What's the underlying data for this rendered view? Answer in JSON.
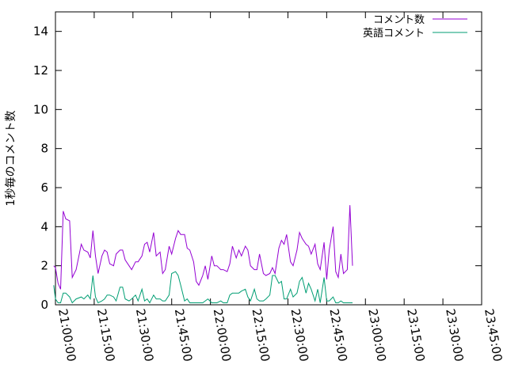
{
  "chart_data": {
    "type": "line",
    "ylabel": "1秒毎のコメント数",
    "ylim": [
      0,
      15
    ],
    "yticks": [
      0,
      2,
      4,
      6,
      8,
      10,
      12,
      14
    ],
    "xlim": [
      "21:00:00",
      "23:45:00"
    ],
    "xticks": [
      "21:00:00",
      "21:15:00",
      "21:30:00",
      "21:45:00",
      "22:00:00",
      "22:15:00",
      "22:30:00",
      "22:45:00",
      "23:00:00",
      "23:15:00",
      "23:30:00",
      "23:45:00"
    ],
    "grid": false,
    "legend_position": "top-right",
    "series": [
      {
        "name": "コメント数",
        "color": "#9400d3",
        "points": [
          [
            "20:59:20",
            2.0
          ],
          [
            "21:00:00",
            1.9
          ],
          [
            "21:01:00",
            1.1
          ],
          [
            "21:02:00",
            0.8
          ],
          [
            "21:03:00",
            4.8
          ],
          [
            "21:04:00",
            4.4
          ],
          [
            "21:05:30",
            4.3
          ],
          [
            "21:06:30",
            1.4
          ],
          [
            "21:08:00",
            1.8
          ],
          [
            "21:10:00",
            3.1
          ],
          [
            "21:11:00",
            2.8
          ],
          [
            "21:12:30",
            2.7
          ],
          [
            "21:13:30",
            2.4
          ],
          [
            "21:14:30",
            3.8
          ],
          [
            "21:15:30",
            2.5
          ],
          [
            "21:16:30",
            1.6
          ],
          [
            "21:18:00",
            2.5
          ],
          [
            "21:19:00",
            2.8
          ],
          [
            "21:20:00",
            2.7
          ],
          [
            "21:21:00",
            2.1
          ],
          [
            "21:22:30",
            2.0
          ],
          [
            "21:23:30",
            2.6
          ],
          [
            "21:25:00",
            2.8
          ],
          [
            "21:26:00",
            2.8
          ],
          [
            "21:27:00",
            2.3
          ],
          [
            "21:28:30",
            2.0
          ],
          [
            "21:29:30",
            1.8
          ],
          [
            "21:31:00",
            2.2
          ],
          [
            "21:32:00",
            2.2
          ],
          [
            "21:33:30",
            2.5
          ],
          [
            "21:34:30",
            3.1
          ],
          [
            "21:35:30",
            3.2
          ],
          [
            "21:36:30",
            2.7
          ],
          [
            "21:38:00",
            3.7
          ],
          [
            "21:39:00",
            2.5
          ],
          [
            "21:40:30",
            2.7
          ],
          [
            "21:41:30",
            1.6
          ],
          [
            "21:42:30",
            1.8
          ],
          [
            "21:44:00",
            3.0
          ],
          [
            "21:45:00",
            2.6
          ],
          [
            "21:46:30",
            3.4
          ],
          [
            "21:47:30",
            3.8
          ],
          [
            "21:48:30",
            3.6
          ],
          [
            "21:50:00",
            3.6
          ],
          [
            "21:51:00",
            2.9
          ],
          [
            "21:52:00",
            2.8
          ],
          [
            "21:53:30",
            2.2
          ],
          [
            "21:54:30",
            1.2
          ],
          [
            "21:55:30",
            1.0
          ],
          [
            "21:57:00",
            1.5
          ],
          [
            "21:58:00",
            2.0
          ],
          [
            "21:59:00",
            1.3
          ],
          [
            "22:00:30",
            2.5
          ],
          [
            "22:01:30",
            2.0
          ],
          [
            "22:02:30",
            2.0
          ],
          [
            "22:04:00",
            1.8
          ],
          [
            "22:05:00",
            1.8
          ],
          [
            "22:06:30",
            1.7
          ],
          [
            "22:07:30",
            2.1
          ],
          [
            "22:08:30",
            3.0
          ],
          [
            "22:10:00",
            2.4
          ],
          [
            "22:11:00",
            2.8
          ],
          [
            "22:12:00",
            2.5
          ],
          [
            "22:13:30",
            3.0
          ],
          [
            "22:14:30",
            2.8
          ],
          [
            "22:15:30",
            2.0
          ],
          [
            "22:17:00",
            1.8
          ],
          [
            "22:18:00",
            1.8
          ],
          [
            "22:19:00",
            2.6
          ],
          [
            "22:20:30",
            1.6
          ],
          [
            "22:21:30",
            1.5
          ],
          [
            "22:23:00",
            1.6
          ],
          [
            "22:24:00",
            1.9
          ],
          [
            "22:25:00",
            1.6
          ],
          [
            "22:26:30",
            2.9
          ],
          [
            "22:27:30",
            3.3
          ],
          [
            "22:28:30",
            3.1
          ],
          [
            "22:29:30",
            3.6
          ],
          [
            "22:31:00",
            2.2
          ],
          [
            "22:32:00",
            2.0
          ],
          [
            "22:33:30",
            2.8
          ],
          [
            "22:34:30",
            3.7
          ],
          [
            "22:35:30",
            3.4
          ],
          [
            "22:37:00",
            3.1
          ],
          [
            "22:38:00",
            3.0
          ],
          [
            "22:39:00",
            2.6
          ],
          [
            "22:40:30",
            3.1
          ],
          [
            "22:41:30",
            2.1
          ],
          [
            "22:42:30",
            1.8
          ],
          [
            "22:44:00",
            3.2
          ],
          [
            "22:45:00",
            1.3
          ],
          [
            "22:46:00",
            2.8
          ],
          [
            "22:47:30",
            4.0
          ],
          [
            "22:48:30",
            1.7
          ],
          [
            "22:49:30",
            1.4
          ],
          [
            "22:50:30",
            2.6
          ],
          [
            "22:51:30",
            1.6
          ],
          [
            "22:53:00",
            1.8
          ],
          [
            "22:54:00",
            5.1
          ],
          [
            "22:55:00",
            2.0
          ]
        ]
      },
      {
        "name": "英語コメント",
        "color": "#009e73",
        "points": [
          [
            "20:59:20",
            1.0
          ],
          [
            "21:00:00",
            0.3
          ],
          [
            "21:01:00",
            0.1
          ],
          [
            "21:02:00",
            0.1
          ],
          [
            "21:03:00",
            0.6
          ],
          [
            "21:04:00",
            0.6
          ],
          [
            "21:05:30",
            0.4
          ],
          [
            "21:06:30",
            0.1
          ],
          [
            "21:08:00",
            0.3
          ],
          [
            "21:10:00",
            0.4
          ],
          [
            "21:11:00",
            0.3
          ],
          [
            "21:12:30",
            0.5
          ],
          [
            "21:13:30",
            0.3
          ],
          [
            "21:14:30",
            1.5
          ],
          [
            "21:15:30",
            0.4
          ],
          [
            "21:16:30",
            0.1
          ],
          [
            "21:18:00",
            0.2
          ],
          [
            "21:19:00",
            0.3
          ],
          [
            "21:20:00",
            0.5
          ],
          [
            "21:21:00",
            0.5
          ],
          [
            "21:22:30",
            0.4
          ],
          [
            "21:23:30",
            0.2
          ],
          [
            "21:25:00",
            0.9
          ],
          [
            "21:26:00",
            0.9
          ],
          [
            "21:27:00",
            0.3
          ],
          [
            "21:28:30",
            0.2
          ],
          [
            "21:29:30",
            0.3
          ],
          [
            "21:31:00",
            0.5
          ],
          [
            "21:32:00",
            0.2
          ],
          [
            "21:33:30",
            0.8
          ],
          [
            "21:34:30",
            0.2
          ],
          [
            "21:35:30",
            0.3
          ],
          [
            "21:36:30",
            0.1
          ],
          [
            "21:38:00",
            0.5
          ],
          [
            "21:39:00",
            0.3
          ],
          [
            "21:40:30",
            0.3
          ],
          [
            "21:41:30",
            0.2
          ],
          [
            "21:42:30",
            0.2
          ],
          [
            "21:44:00",
            0.5
          ],
          [
            "21:45:00",
            1.6
          ],
          [
            "21:46:30",
            1.7
          ],
          [
            "21:47:30",
            1.5
          ],
          [
            "21:48:30",
            1.0
          ],
          [
            "21:50:00",
            0.2
          ],
          [
            "21:51:00",
            0.3
          ],
          [
            "21:52:00",
            0.1
          ],
          [
            "21:53:30",
            0.1
          ],
          [
            "21:54:30",
            0.1
          ],
          [
            "21:55:30",
            0.1
          ],
          [
            "21:57:00",
            0.1
          ],
          [
            "21:58:00",
            0.2
          ],
          [
            "21:59:00",
            0.3
          ],
          [
            "22:00:30",
            0.1
          ],
          [
            "22:01:30",
            0.1
          ],
          [
            "22:02:30",
            0.1
          ],
          [
            "22:04:00",
            0.2
          ],
          [
            "22:05:00",
            0.1
          ],
          [
            "22:06:30",
            0.1
          ],
          [
            "22:07:30",
            0.5
          ],
          [
            "22:08:30",
            0.6
          ],
          [
            "22:10:00",
            0.6
          ],
          [
            "22:11:00",
            0.6
          ],
          [
            "22:12:00",
            0.7
          ],
          [
            "22:13:30",
            0.8
          ],
          [
            "22:14:30",
            0.4
          ],
          [
            "22:15:30",
            0.2
          ],
          [
            "22:17:00",
            0.8
          ],
          [
            "22:18:00",
            0.3
          ],
          [
            "22:19:00",
            0.2
          ],
          [
            "22:20:30",
            0.2
          ],
          [
            "22:21:30",
            0.3
          ],
          [
            "22:23:00",
            0.5
          ],
          [
            "22:24:00",
            1.5
          ],
          [
            "22:25:00",
            1.5
          ],
          [
            "22:26:30",
            1.1
          ],
          [
            "22:27:30",
            1.2
          ],
          [
            "22:28:30",
            0.3
          ],
          [
            "22:29:30",
            0.3
          ],
          [
            "22:31:00",
            0.8
          ],
          [
            "22:32:00",
            0.4
          ],
          [
            "22:33:30",
            0.6
          ],
          [
            "22:34:30",
            1.2
          ],
          [
            "22:35:30",
            1.4
          ],
          [
            "22:37:00",
            0.6
          ],
          [
            "22:38:00",
            1.1
          ],
          [
            "22:39:00",
            0.8
          ],
          [
            "22:40:30",
            0.2
          ],
          [
            "22:41:30",
            0.8
          ],
          [
            "22:42:30",
            0.1
          ],
          [
            "22:44:00",
            1.4
          ],
          [
            "22:45:00",
            0.2
          ],
          [
            "22:46:00",
            0.2
          ],
          [
            "22:47:30",
            0.4
          ],
          [
            "22:48:30",
            0.1
          ],
          [
            "22:49:30",
            0.1
          ],
          [
            "22:50:30",
            0.2
          ],
          [
            "22:51:30",
            0.1
          ],
          [
            "22:53:00",
            0.1
          ],
          [
            "22:54:00",
            0.1
          ],
          [
            "22:55:00",
            0.1
          ]
        ]
      }
    ]
  }
}
